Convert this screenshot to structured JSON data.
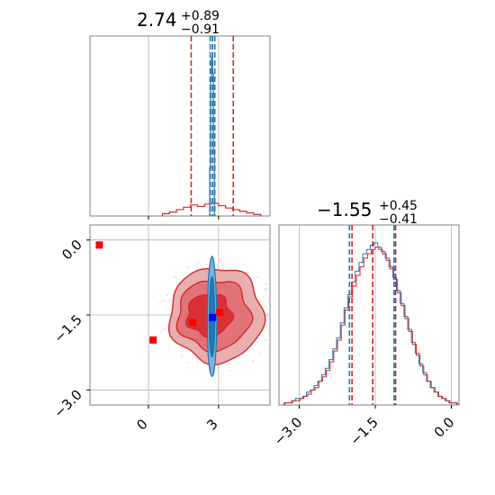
{
  "colors": {
    "truth": "#d62728",
    "posterior": "#1f77b4",
    "marker_red": "#ff0000",
    "marker_blue": "#0000ff",
    "contour_fill": "#e8aeb0",
    "contour_fill_mid": "#e17378",
    "contour_fill_core": "#d93035",
    "grid": "#b0b0b0",
    "axis": "#808080"
  },
  "chart_data": [
    {
      "type": "histogram",
      "panel": "top-left",
      "title_value": "2.74",
      "title_upper": "+0.89",
      "title_lower": "−0.91",
      "xlim": [
        -2.5,
        5.2
      ],
      "x_gridlines": [
        0,
        3
      ],
      "series": [
        {
          "color": "red",
          "quantile_lines": [
            1.83,
            2.74,
            3.63
          ],
          "bins": [
            {
              "x0": 0.6,
              "x1": 0.9,
              "h": 0.015
            },
            {
              "x0": 0.9,
              "x1": 1.2,
              "h": 0.025
            },
            {
              "x0": 1.2,
              "x1": 1.5,
              "h": 0.04
            },
            {
              "x0": 1.5,
              "x1": 1.8,
              "h": 0.055
            },
            {
              "x0": 1.8,
              "x1": 2.1,
              "h": 0.07
            },
            {
              "x0": 2.1,
              "x1": 2.4,
              "h": 0.06
            },
            {
              "x0": 2.4,
              "x1": 2.7,
              "h": 0.075
            },
            {
              "x0": 2.7,
              "x1": 3.0,
              "h": 0.08
            },
            {
              "x0": 3.0,
              "x1": 3.3,
              "h": 0.065
            },
            {
              "x0": 3.3,
              "x1": 3.6,
              "h": 0.05
            },
            {
              "x0": 3.6,
              "x1": 3.9,
              "h": 0.04
            },
            {
              "x0": 3.9,
              "x1": 4.2,
              "h": 0.03
            },
            {
              "x0": 4.2,
              "x1": 4.5,
              "h": 0.02
            },
            {
              "x0": 4.5,
              "x1": 4.8,
              "h": 0.01
            }
          ]
        },
        {
          "color": "blue",
          "quantile_lines": [
            2.64,
            2.74,
            2.84
          ],
          "bins": [
            {
              "x0": 2.62,
              "x1": 2.66,
              "h": 0.3
            },
            {
              "x0": 2.66,
              "x1": 2.7,
              "h": 0.85
            },
            {
              "x0": 2.7,
              "x1": 2.74,
              "h": 1.0
            },
            {
              "x0": 2.74,
              "x1": 2.78,
              "h": 0.9
            },
            {
              "x0": 2.78,
              "x1": 2.82,
              "h": 0.4
            }
          ]
        }
      ]
    },
    {
      "type": "histogram",
      "panel": "bottom-right",
      "title_value": "−1.55",
      "title_upper": "+0.45",
      "title_lower": "−0.41",
      "xlim": [
        -3.4,
        0.15
      ],
      "xticks": [
        -3.0,
        -1.5,
        0.0
      ],
      "xtick_labels": [
        "−3.0",
        "−1.5",
        "0.0"
      ],
      "quantile_lines": {
        "red": [
          -1.96,
          -1.55,
          -1.1
        ],
        "blue": [
          -2.01,
          -1.55,
          -1.13
        ]
      },
      "red_bins": [
        0.01,
        0.01,
        0.02,
        0.02,
        0.03,
        0.04,
        0.05,
        0.07,
        0.08,
        0.11,
        0.13,
        0.16,
        0.2,
        0.25,
        0.3,
        0.37,
        0.44,
        0.5,
        0.55,
        0.6,
        0.64,
        0.68,
        0.7,
        0.72,
        0.73,
        0.72,
        0.7,
        0.67,
        0.63,
        0.58,
        0.52,
        0.46,
        0.4,
        0.34,
        0.28,
        0.23,
        0.18,
        0.14,
        0.11,
        0.08,
        0.06,
        0.04,
        0.03,
        0.02,
        0.01,
        0.01
      ],
      "blue_bins": [
        0.01,
        0.01,
        0.02,
        0.03,
        0.03,
        0.04,
        0.06,
        0.07,
        0.09,
        0.11,
        0.14,
        0.17,
        0.21,
        0.26,
        0.31,
        0.38,
        0.45,
        0.51,
        0.57,
        0.62,
        0.66,
        0.7,
        0.72,
        0.74,
        0.75,
        0.73,
        0.71,
        0.68,
        0.64,
        0.59,
        0.53,
        0.47,
        0.41,
        0.35,
        0.29,
        0.24,
        0.19,
        0.15,
        0.11,
        0.08,
        0.06,
        0.04,
        0.03,
        0.02,
        0.01,
        0.01
      ]
    },
    {
      "type": "scatter",
      "panel": "bottom-left",
      "xlim": [
        -2.5,
        5.2
      ],
      "ylim": [
        -3.3,
        0.3
      ],
      "xticks": [
        0,
        3
      ],
      "xtick_labels": [
        "0",
        "3"
      ],
      "yticks": [
        0.0,
        -1.5,
        -3.0
      ],
      "ytick_labels": [
        "0.0",
        "−1.5",
        "−3.0"
      ],
      "red_contours": [
        {
          "cx": 2.9,
          "cy": -1.5,
          "rx": 2.0,
          "ry": 0.95,
          "level": "outer"
        },
        {
          "cx": 2.8,
          "cy": -1.5,
          "rx": 1.55,
          "ry": 0.7,
          "level": "mid"
        },
        {
          "cx": 2.6,
          "cy": -1.5,
          "rx": 0.95,
          "ry": 0.42,
          "level": "core"
        }
      ],
      "blue_contours": [
        {
          "cx": 2.72,
          "cy": -1.55,
          "rx": 0.2,
          "ry": 1.2
        },
        {
          "cx": 2.72,
          "cy": -1.55,
          "rx": 0.12,
          "ry": 0.8
        }
      ],
      "red_markers": [
        {
          "x": -2.1,
          "y": -0.1
        },
        {
          "x": 0.2,
          "y": -2.0
        },
        {
          "x": 1.9,
          "y": -1.65
        },
        {
          "x": 3.05,
          "y": -1.45
        }
      ],
      "blue_marker": {
        "x": 2.74,
        "y": -1.55
      }
    }
  ]
}
